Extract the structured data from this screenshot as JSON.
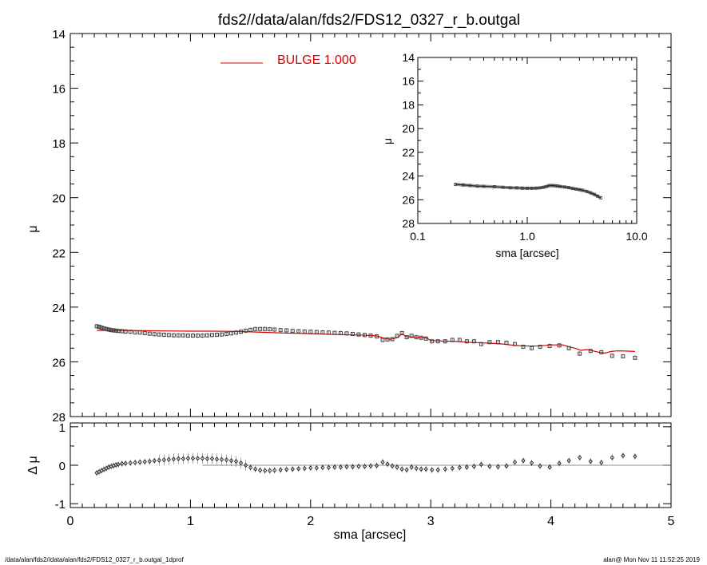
{
  "title": "fds2//data/alan/fds2/FDS12_0327_r_b.outgal",
  "footer": {
    "left": "/data/alan/fds2//data/alan/fds2/FDS12_0327_r_b.outgal_1dprof",
    "right": "alan@  Mon Nov 11 11:52:25 2019"
  },
  "chart_data": [
    {
      "type": "scatter",
      "panel": "main",
      "ylabel": "μ",
      "xlim": [
        0,
        5
      ],
      "ylim": [
        28,
        14
      ],
      "y_inverted": true,
      "xticks": [
        "0",
        "1",
        "2",
        "3",
        "4",
        "5"
      ],
      "yticks": [
        "14",
        "16",
        "18",
        "20",
        "22",
        "24",
        "26",
        "28"
      ],
      "legend": {
        "label": "BULGE  1.000",
        "color": "#dd0000",
        "placement": "top-center"
      },
      "series": [
        {
          "kind": "data-points",
          "marker": "square",
          "color": "#000000",
          "x": [
            0.22,
            0.24,
            0.26,
            0.28,
            0.3,
            0.32,
            0.34,
            0.36,
            0.38,
            0.4,
            0.43,
            0.46,
            0.5,
            0.54,
            0.58,
            0.62,
            0.66,
            0.7,
            0.74,
            0.78,
            0.82,
            0.86,
            0.9,
            0.94,
            0.98,
            1.02,
            1.06,
            1.1,
            1.14,
            1.18,
            1.22,
            1.26,
            1.3,
            1.34,
            1.38,
            1.42,
            1.46,
            1.5,
            1.54,
            1.58,
            1.62,
            1.66,
            1.7,
            1.75,
            1.8,
            1.85,
            1.9,
            1.95,
            2.0,
            2.05,
            2.1,
            2.15,
            2.2,
            2.25,
            2.3,
            2.35,
            2.4,
            2.45,
            2.5,
            2.55,
            2.6,
            2.64,
            2.68,
            2.72,
            2.76,
            2.8,
            2.84,
            2.88,
            2.92,
            2.96,
            3.01,
            3.06,
            3.12,
            3.18,
            3.24,
            3.3,
            3.36,
            3.42,
            3.49,
            3.56,
            3.63,
            3.7,
            3.77,
            3.84,
            3.91,
            3.99,
            4.07,
            4.15,
            4.24,
            4.33,
            4.42,
            4.51,
            4.6,
            4.7
          ],
          "y": [
            24.7,
            24.72,
            24.75,
            24.78,
            24.8,
            24.82,
            24.84,
            24.85,
            24.86,
            24.87,
            24.88,
            24.89,
            24.9,
            24.92,
            24.93,
            24.95,
            24.97,
            24.99,
            25.0,
            25.01,
            25.02,
            25.03,
            25.03,
            25.03,
            25.04,
            25.04,
            25.04,
            25.04,
            25.03,
            25.02,
            25.01,
            25.0,
            24.98,
            24.96,
            24.93,
            24.9,
            24.86,
            24.83,
            24.8,
            24.8,
            24.8,
            24.81,
            24.82,
            24.84,
            24.85,
            24.87,
            24.88,
            24.89,
            24.9,
            24.91,
            24.92,
            24.93,
            24.94,
            24.95,
            24.96,
            24.98,
            25.0,
            25.02,
            25.04,
            25.07,
            25.2,
            25.18,
            25.17,
            25.05,
            24.95,
            25.1,
            25.05,
            25.1,
            25.12,
            25.15,
            25.25,
            25.25,
            25.25,
            25.2,
            25.2,
            25.25,
            25.25,
            25.35,
            25.28,
            25.28,
            25.3,
            25.35,
            25.45,
            25.5,
            25.45,
            25.42,
            25.4,
            25.5,
            25.7,
            25.6,
            25.65,
            25.78,
            25.8,
            25.85
          ]
        },
        {
          "kind": "model-fit",
          "name": "BULGE  1.000",
          "color": "#dd0000",
          "x": [
            0.22,
            0.4,
            0.6,
            0.8,
            1.0,
            1.2,
            1.4,
            1.6,
            1.8,
            2.0,
            2.2,
            2.4,
            2.55,
            2.6,
            2.66,
            2.72,
            2.76,
            2.8,
            2.88,
            2.96,
            3.0,
            3.1,
            3.2,
            3.3,
            3.4,
            3.5,
            3.6,
            3.7,
            3.8,
            3.9,
            4.0,
            4.1,
            4.15,
            4.2,
            4.25,
            4.3,
            4.35,
            4.4,
            4.45,
            4.5,
            4.55,
            4.6,
            4.7
          ],
          "y": [
            24.85,
            24.85,
            24.86,
            24.87,
            24.88,
            24.88,
            24.89,
            24.92,
            24.95,
            24.97,
            25.0,
            25.02,
            25.05,
            25.12,
            25.18,
            25.12,
            24.98,
            25.08,
            25.1,
            25.12,
            25.22,
            25.24,
            25.25,
            25.28,
            25.3,
            25.32,
            25.35,
            25.4,
            25.42,
            25.42,
            25.38,
            25.38,
            25.45,
            25.5,
            25.58,
            25.55,
            25.6,
            25.65,
            25.68,
            25.62,
            25.6,
            25.6,
            25.62
          ]
        }
      ]
    },
    {
      "type": "line",
      "panel": "inset",
      "ylabel": "μ",
      "xlabel": "sma [arcsec]",
      "x_scale": "log",
      "xlim": [
        0.1,
        10
      ],
      "ylim": [
        28,
        14
      ],
      "y_inverted": true,
      "xticks": [
        "0.1",
        "1.0",
        "10.0"
      ],
      "yticks": [
        "14",
        "16",
        "18",
        "20",
        "22",
        "24",
        "26",
        "28"
      ],
      "series": [
        {
          "kind": "data-points",
          "color": "#000000",
          "x": [
            0.22,
            0.26,
            0.3,
            0.35,
            0.4,
            0.5,
            0.6,
            0.7,
            0.8,
            0.9,
            1.0,
            1.1,
            1.2,
            1.3,
            1.4,
            1.5,
            1.6,
            1.7,
            1.8,
            1.9,
            2.0,
            2.2,
            2.4,
            2.6,
            2.8,
            3.0,
            3.2,
            3.5,
            3.8,
            4.1,
            4.4,
            4.7
          ],
          "y": [
            24.7,
            24.75,
            24.8,
            24.85,
            24.87,
            24.9,
            24.95,
            24.99,
            25.0,
            25.02,
            25.03,
            25.03,
            25.02,
            25.0,
            24.95,
            24.88,
            24.8,
            24.8,
            24.82,
            24.85,
            24.88,
            24.93,
            24.98,
            25.05,
            25.1,
            25.15,
            25.2,
            25.3,
            25.42,
            25.55,
            25.7,
            25.85
          ]
        }
      ]
    },
    {
      "type": "scatter",
      "panel": "residual",
      "ylabel": "Δ μ",
      "xlabel": "sma [arcsec]",
      "xlim": [
        0,
        5
      ],
      "ylim": [
        -1.1,
        1.1
      ],
      "xticks": [
        "0",
        "1",
        "2",
        "3",
        "4",
        "5"
      ],
      "yticks": [
        "-1",
        "0",
        "1"
      ],
      "reference_line": 0,
      "series": [
        {
          "kind": "residuals",
          "marker": "diamond",
          "color": "#000000",
          "x": [
            0.22,
            0.24,
            0.26,
            0.28,
            0.3,
            0.32,
            0.34,
            0.36,
            0.38,
            0.4,
            0.43,
            0.46,
            0.5,
            0.54,
            0.58,
            0.62,
            0.66,
            0.7,
            0.74,
            0.78,
            0.82,
            0.86,
            0.9,
            0.94,
            0.98,
            1.02,
            1.06,
            1.1,
            1.14,
            1.18,
            1.22,
            1.26,
            1.3,
            1.34,
            1.38,
            1.42,
            1.46,
            1.5,
            1.54,
            1.58,
            1.62,
            1.66,
            1.7,
            1.75,
            1.8,
            1.85,
            1.9,
            1.95,
            2.0,
            2.05,
            2.1,
            2.15,
            2.2,
            2.25,
            2.3,
            2.35,
            2.4,
            2.45,
            2.5,
            2.55,
            2.6,
            2.64,
            2.68,
            2.72,
            2.76,
            2.8,
            2.84,
            2.88,
            2.92,
            2.96,
            3.01,
            3.06,
            3.12,
            3.18,
            3.24,
            3.3,
            3.36,
            3.42,
            3.49,
            3.56,
            3.63,
            3.7,
            3.77,
            3.84,
            3.91,
            3.99,
            4.07,
            4.15,
            4.24,
            4.33,
            4.42,
            4.51,
            4.6,
            4.7
          ],
          "y": [
            -0.2,
            -0.17,
            -0.14,
            -0.11,
            -0.08,
            -0.05,
            -0.03,
            -0.01,
            0.01,
            0.02,
            0.04,
            0.05,
            0.06,
            0.07,
            0.08,
            0.09,
            0.1,
            0.12,
            0.13,
            0.14,
            0.15,
            0.16,
            0.17,
            0.17,
            0.18,
            0.18,
            0.18,
            0.18,
            0.17,
            0.17,
            0.16,
            0.15,
            0.14,
            0.12,
            0.1,
            0.06,
            0.0,
            -0.06,
            -0.1,
            -0.13,
            -0.14,
            -0.14,
            -0.13,
            -0.12,
            -0.11,
            -0.1,
            -0.09,
            -0.08,
            -0.07,
            -0.07,
            -0.06,
            -0.06,
            -0.05,
            -0.05,
            -0.04,
            -0.04,
            -0.03,
            -0.03,
            -0.02,
            -0.01,
            0.08,
            0.03,
            -0.02,
            -0.05,
            -0.1,
            -0.12,
            -0.05,
            -0.08,
            -0.1,
            -0.1,
            -0.12,
            -0.12,
            -0.1,
            -0.08,
            -0.06,
            -0.05,
            -0.03,
            0.02,
            -0.03,
            -0.04,
            -0.02,
            0.08,
            0.12,
            0.06,
            -0.02,
            -0.05,
            0.05,
            0.12,
            0.2,
            0.1,
            0.07,
            0.2,
            0.25,
            0.23
          ]
        }
      ]
    }
  ]
}
